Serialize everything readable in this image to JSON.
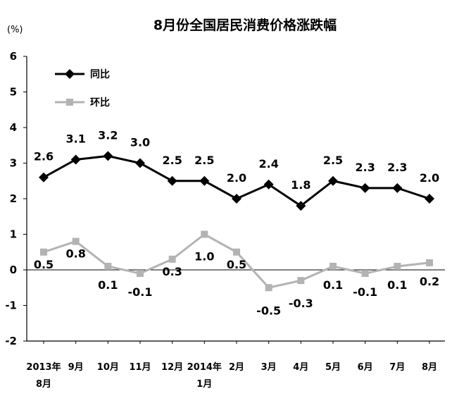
{
  "chart_data": {
    "type": "line",
    "title": "8月份全国居民消费价格涨跌幅",
    "unit": "(%)",
    "ylim": [
      -2,
      6
    ],
    "yticks": [
      "6",
      "5",
      "4",
      "3",
      "2",
      "1",
      "0",
      "-1",
      "-2"
    ],
    "categories": [
      [
        "2013年",
        "8月"
      ],
      [
        "9月"
      ],
      [
        "10月"
      ],
      [
        "11月"
      ],
      [
        "12月"
      ],
      [
        "2014年",
        "1月"
      ],
      [
        "2月"
      ],
      [
        "3月"
      ],
      [
        "4月"
      ],
      [
        "5月"
      ],
      [
        "6月"
      ],
      [
        "7月"
      ],
      [
        "8月"
      ]
    ],
    "legend": {
      "position": "top-left"
    },
    "series": [
      {
        "name": "同比",
        "color": "#000000",
        "marker": "diamond",
        "values": [
          2.6,
          3.1,
          3.2,
          3.0,
          2.5,
          2.5,
          2.0,
          2.4,
          1.8,
          2.5,
          2.3,
          2.3,
          2.0
        ],
        "labels": [
          "2.6",
          "3.1",
          "3.2",
          "3.0",
          "2.5",
          "2.5",
          "2.0",
          "2.4",
          "1.8",
          "2.5",
          "2.3",
          "2.3",
          "2.0"
        ]
      },
      {
        "name": "环比",
        "color": "#b3b3b3",
        "marker": "square",
        "values": [
          0.5,
          0.8,
          0.1,
          -0.1,
          0.3,
          1.0,
          0.5,
          -0.5,
          -0.3,
          0.1,
          -0.1,
          0.1,
          0.2
        ],
        "labels": [
          "0.5",
          "0.8",
          "0.1",
          "-0.1",
          "0.3",
          "1.0",
          "0.5",
          "-0.5",
          "-0.3",
          "0.1",
          "-0.1",
          "0.1",
          "0.2"
        ]
      }
    ]
  }
}
